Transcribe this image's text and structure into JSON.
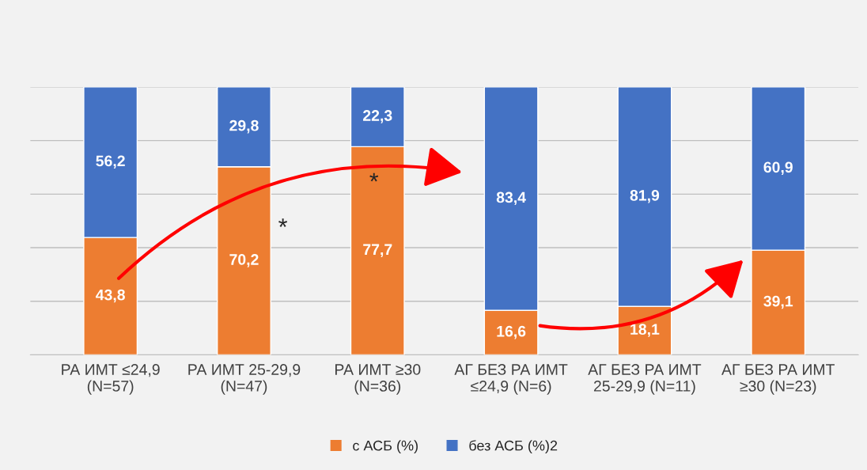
{
  "chart_data": {
    "type": "bar",
    "stacked": true,
    "categories": [
      "РА ИМТ ≤24,9\n(N=57)",
      "РА ИМТ 25-29,9\n(N=47)",
      "РА ИМТ ≥30\n(N=36)",
      "АГ БЕЗ РА ИМТ\n≤24,9 (N=6)",
      "АГ БЕЗ РА ИМТ\n25-29,9 (N=11)",
      "АГ БЕЗ РА ИМТ\n≥30 (N=23)"
    ],
    "series": [
      {
        "name": "с АСБ (%)",
        "color": "#ed7d31",
        "values": [
          43.8,
          70.2,
          77.7,
          16.6,
          18.1,
          39.1
        ],
        "value_labels": [
          "43,8",
          "70,2",
          "77,7",
          "16,6",
          "18,1",
          "39,1"
        ]
      },
      {
        "name": "без АСБ (%)2",
        "color": "#4472c4",
        "values": [
          56.2,
          29.8,
          22.3,
          83.4,
          81.9,
          60.9
        ],
        "value_labels": [
          "56,2",
          "29,8",
          "22,3",
          "83,4",
          "81,9",
          "60,9"
        ]
      }
    ],
    "grid": "y",
    "legend": "bottom",
    "tick_labels": "x",
    "annotations": [
      "*",
      "*"
    ]
  }
}
